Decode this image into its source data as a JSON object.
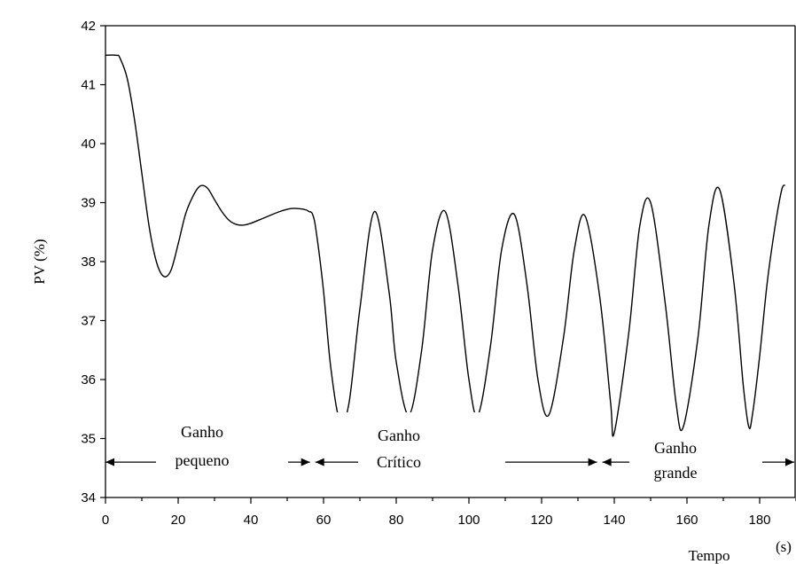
{
  "chart_data": {
    "type": "line",
    "title": "",
    "xlabel": "Tempo",
    "xunit": "(s)",
    "ylabel": "PV (%)",
    "xlim": [
      0,
      190
    ],
    "ylim": [
      34,
      42
    ],
    "xticks": [
      0,
      20,
      40,
      60,
      80,
      100,
      120,
      140,
      160,
      180
    ],
    "yticks": [
      34,
      35,
      36,
      37,
      38,
      39,
      40,
      41,
      42
    ],
    "grid": false,
    "line_color": "#000000",
    "series": [
      {
        "x": [
          0,
          3,
          4,
          6,
          8,
          10,
          12,
          14,
          16,
          18,
          20,
          22,
          24,
          26,
          28,
          30,
          32,
          34,
          36,
          38,
          40,
          44,
          48,
          51,
          53,
          55,
          56,
          57,
          58,
          60,
          62,
          64.5,
          67,
          70,
          74,
          78,
          80,
          83.5,
          87,
          90,
          93.5,
          97,
          100,
          102.5,
          106,
          109,
          112.5,
          116,
          119,
          122,
          126,
          129,
          132,
          136,
          139,
          140,
          144,
          147,
          150,
          154,
          157,
          159,
          163,
          166,
          169,
          173,
          175.5,
          177,
          178,
          180,
          182,
          184,
          186,
          187
        ],
        "y": [
          41.5,
          41.5,
          41.45,
          41.1,
          40.4,
          39.5,
          38.6,
          38.0,
          37.75,
          37.85,
          38.3,
          38.8,
          39.1,
          39.28,
          39.25,
          39.05,
          38.85,
          38.7,
          38.63,
          38.62,
          38.65,
          38.75,
          38.85,
          38.9,
          38.9,
          38.88,
          38.85,
          38.8,
          38.5,
          37.5,
          36.2,
          35.3,
          35.6,
          37.2,
          38.85,
          37.5,
          36.3,
          35.4,
          36.5,
          38.2,
          38.85,
          37.6,
          36.0,
          35.4,
          36.6,
          38.2,
          38.8,
          37.6,
          36.0,
          35.4,
          36.7,
          38.2,
          38.77,
          37.4,
          35.6,
          35.1,
          36.8,
          38.6,
          39.0,
          37.3,
          35.6,
          35.2,
          36.7,
          38.6,
          39.22,
          37.6,
          35.9,
          35.2,
          35.4,
          36.4,
          37.6,
          38.5,
          39.2,
          39.3
        ]
      }
    ],
    "regions": [
      {
        "label_line1": "Ganho",
        "label_line2": "pequeno",
        "x_start": 0,
        "x_end": 57
      },
      {
        "label_line1": "Ganho",
        "label_line2": "Crítico",
        "x_start": 57,
        "x_end": 136
      },
      {
        "label_line1": "Ganho",
        "label_line2": "grande",
        "x_start": 136,
        "x_end": 190
      }
    ]
  }
}
